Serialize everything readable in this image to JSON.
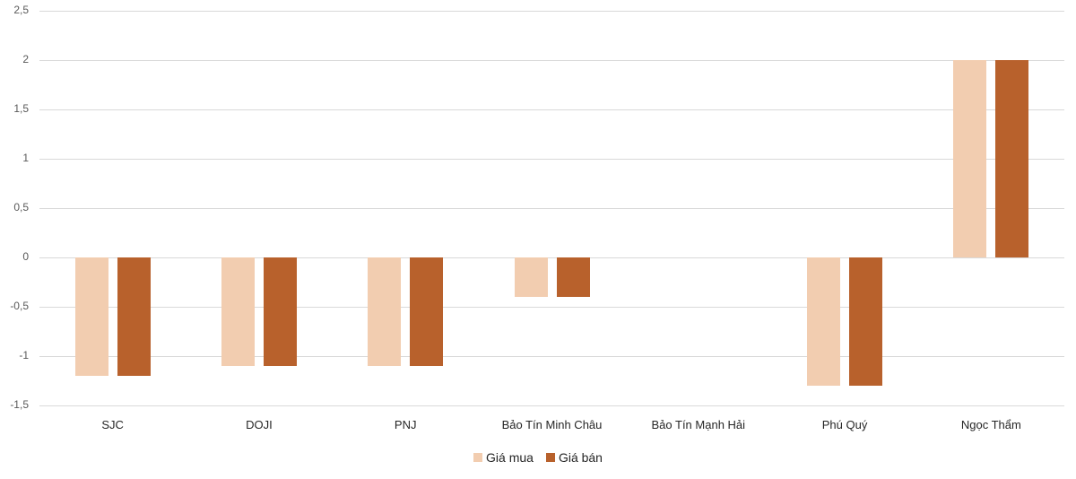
{
  "chart_data": {
    "type": "bar",
    "title": "",
    "xlabel": "",
    "ylabel": "",
    "ylim": [
      -1.5,
      2.5
    ],
    "yticks": [
      "2,5",
      "2",
      "1,5",
      "1",
      "0,5",
      "0",
      "-0,5",
      "-1",
      "-1,5"
    ],
    "ytick_values": [
      2.5,
      2,
      1.5,
      1,
      0.5,
      0,
      -0.5,
      -1,
      -1.5
    ],
    "grid": true,
    "legend_position": "bottom",
    "categories": [
      "SJC",
      "DOJI",
      "PNJ",
      "Bảo Tín Minh Châu",
      "Bảo Tín Mạnh Hải",
      "Phú Quý",
      "Ngọc Thẩm"
    ],
    "series": [
      {
        "name": "Giá mua",
        "color": "#f2cdb0",
        "values": [
          -1.2,
          -1.1,
          -1.1,
          -0.4,
          0,
          -1.3,
          2
        ]
      },
      {
        "name": "Giá bán",
        "color": "#b8612c",
        "values": [
          -1.2,
          -1.1,
          -1.1,
          -0.4,
          0,
          -1.3,
          2
        ]
      }
    ]
  }
}
